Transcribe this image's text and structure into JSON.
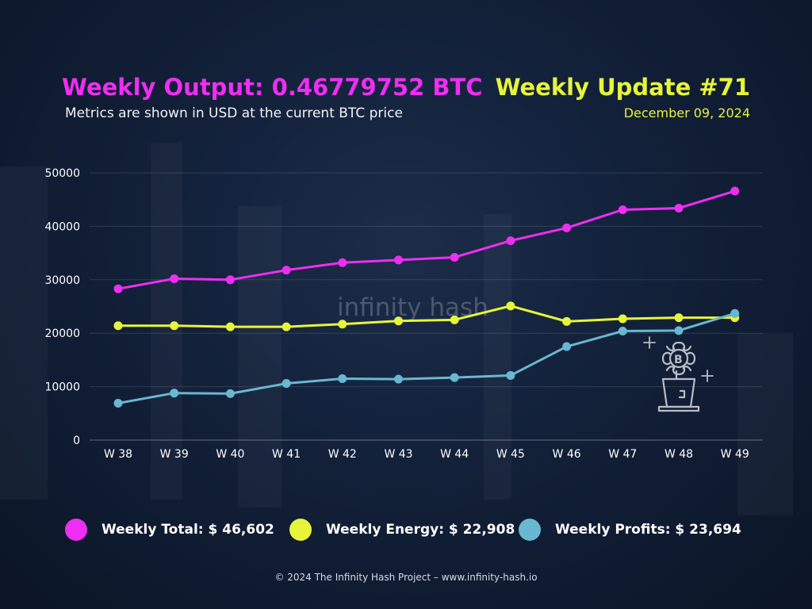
{
  "header": {
    "title": "Weekly Output: 0.46779752 BTC",
    "subtitle": "Metrics are shown in USD at the current BTC price",
    "update_title": "Weekly Update #71",
    "update_date": "December 09, 2024"
  },
  "watermark": {
    "text": "infinity hash"
  },
  "colors": {
    "total": "#ee2ef2",
    "energy": "#e6f53a",
    "profits": "#69b7d1"
  },
  "chart_data": {
    "type": "line",
    "categories": [
      "W 38",
      "W 39",
      "W 40",
      "W 41",
      "W 42",
      "W 43",
      "W 44",
      "W 45",
      "W 46",
      "W 47",
      "W 48",
      "W 49"
    ],
    "series": [
      {
        "name": "Weekly Total",
        "color": "#ee2ef2",
        "values": [
          28300,
          30200,
          30000,
          31800,
          33200,
          33700,
          34200,
          37300,
          39700,
          43100,
          43400,
          46602
        ]
      },
      {
        "name": "Weekly Energy",
        "color": "#e6f53a",
        "values": [
          21400,
          21400,
          21200,
          21200,
          21700,
          22300,
          22500,
          25100,
          22200,
          22700,
          22900,
          22908
        ]
      },
      {
        "name": "Weekly Profits",
        "color": "#69b7d1",
        "values": [
          6900,
          8800,
          8700,
          10600,
          11500,
          11400,
          11700,
          12100,
          17500,
          20400,
          20500,
          23694
        ]
      }
    ],
    "yticks": [
      0,
      10000,
      20000,
      30000,
      40000,
      50000
    ],
    "ylim": [
      0,
      50000
    ],
    "grid": true
  },
  "legend": [
    {
      "label": "Weekly Total: $ 46,602",
      "color": "#ee2ef2"
    },
    {
      "label": "Weekly Energy: $ 22,908",
      "color": "#e6f53a"
    },
    {
      "label": "Weekly Profits: $ 23,694",
      "color": "#69b7d1"
    }
  ],
  "footer": {
    "text": "© 2024 The Infinity Hash Project – www.infinity-hash.io"
  }
}
